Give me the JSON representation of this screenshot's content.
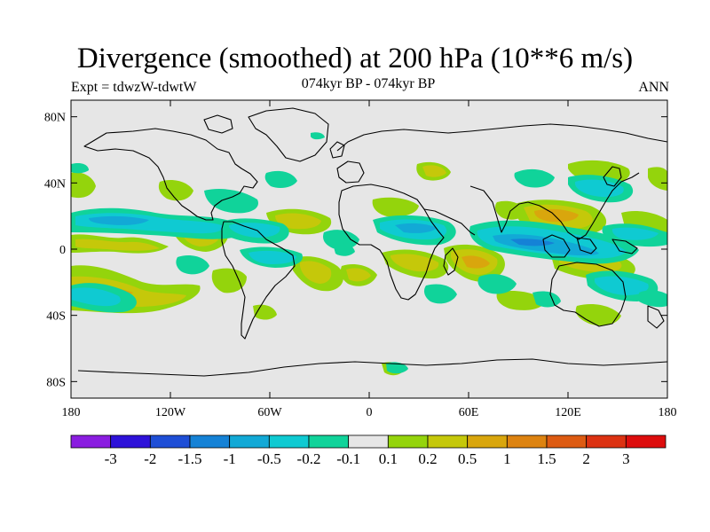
{
  "title": "Divergence (smoothed) at 200 hPa (10**6 m/s)",
  "subtitle_left": "Expt = tdwzW-tdwtW",
  "subtitle_center": "074kyr BP - 074kyr BP",
  "subtitle_right": "ANN",
  "map": {
    "projection": "cylindrical equidistant",
    "lon_range": [
      -180,
      180
    ],
    "lat_range": [
      -90,
      90
    ],
    "background_color": "#e6e6e6",
    "lat_ticks": [
      "80N",
      "40N",
      "0",
      "40S",
      "80S"
    ],
    "lon_ticks": [
      "180",
      "120W",
      "60W",
      "0",
      "60E",
      "120E",
      "180"
    ]
  },
  "colorbar": {
    "labels": [
      "-3",
      "-2",
      "-1.5",
      "-1",
      "-0.5",
      "-0.2",
      "-0.1",
      "0.1",
      "0.2",
      "0.5",
      "1",
      "1.5",
      "2",
      "3"
    ],
    "colors": [
      "#8a1de0",
      "#2e12d9",
      "#1e4ed6",
      "#1582d6",
      "#12a9d6",
      "#0fcad2",
      "#10d39a",
      "#e6e6e6",
      "#94d40c",
      "#c5c80a",
      "#d9a60d",
      "#dd8310",
      "#dd5b12",
      "#dc3212",
      "#dd0d0d"
    ]
  }
}
